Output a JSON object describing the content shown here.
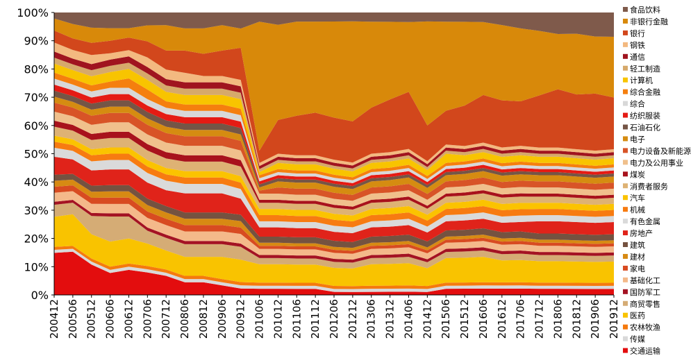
{
  "chart_data": {
    "type": "area",
    "stacked": true,
    "stack_order": "first series at top, last series at bottom",
    "y_tick_labels": [
      "0%",
      "10%",
      "20%",
      "30%",
      "40%",
      "50%",
      "60%",
      "70%",
      "80%",
      "90%",
      "100%"
    ],
    "ylim": [
      0,
      100
    ],
    "x_tick_labels": [
      "200412",
      "200506",
      "200512",
      "200606",
      "200612",
      "200706",
      "200712",
      "200806",
      "200812",
      "200906",
      "200912",
      "201006",
      "201012",
      "201106",
      "201112",
      "201206",
      "201212",
      "201306",
      "201312",
      "201406",
      "201412",
      "201506",
      "201512",
      "201606",
      "201612",
      "201706",
      "201712",
      "201806",
      "201812",
      "201906",
      "201912"
    ],
    "legend_position": "right",
    "grid": false,
    "colors": {
      "食品饮料": "#7f5a4b",
      "非银行金融": "#d8890a",
      "银行": "#d2471c",
      "钢铁": "#f3b980",
      "通信": "#a0141f",
      "轻工制造": "#d6a96b",
      "计算机": "#f8c400",
      "综合金融": "#f57f0e",
      "综合": "#d8d8d8",
      "纺织服装": "#e51b14",
      "石油石化": "#755546",
      "电子": "#d58c11",
      "电力设备及新能源": "#d85427",
      "电力及公用事业": "#f0c08c",
      "煤炭": "#a8121c",
      "消费者服务": "#deb274",
      "汽车": "#fbc300",
      "机械": "#f77b11",
      "有色金属": "#dadada",
      "房地产": "#e0231a",
      "建筑": "#755240",
      "建材": "#d78a13",
      "家电": "#d84b21",
      "基础化工": "#f4b98a",
      "国防军工": "#a41323",
      "商贸零售": "#d5ac75",
      "医药": "#f9c300",
      "农林牧渔": "#f57a0e",
      "传媒": "#d9d9d9",
      "交通运输": "#e30d0e"
    },
    "series": [
      {
        "name": "食品饮料",
        "values": [
          2,
          4,
          5,
          5,
          5,
          4,
          4,
          5,
          5,
          4,
          5,
          3,
          4,
          3,
          3,
          3,
          3,
          3,
          3,
          3,
          3,
          3,
          3,
          3,
          4,
          5,
          6,
          7,
          7,
          8,
          8
        ]
      },
      {
        "name": "非银行金融",
        "values": [
          4,
          5,
          5,
          4,
          3,
          5,
          8,
          7,
          8,
          8,
          6,
          42,
          31,
          31,
          30,
          32,
          34,
          28,
          25,
          22,
          35,
          29,
          27,
          23,
          24,
          23,
          21,
          18,
          20,
          19,
          20
        ]
      },
      {
        "name": "银行",
        "values": [
          4,
          4,
          4,
          4,
          4,
          5,
          6,
          7,
          7,
          8,
          10,
          4,
          11,
          13,
          14,
          14,
          14,
          15,
          17,
          18,
          12,
          11,
          13,
          15,
          15,
          14,
          17,
          19,
          18,
          19,
          17
        ]
      },
      {
        "name": "钢铁",
        "values": [
          3,
          3,
          3,
          2,
          2,
          3,
          3,
          3,
          2,
          2,
          2,
          1,
          1,
          1,
          1,
          1,
          1,
          1,
          1,
          1,
          1,
          1,
          1,
          1,
          1,
          1,
          1,
          1,
          1,
          1,
          1
        ]
      },
      {
        "name": "通信",
        "values": [
          2,
          2,
          2,
          2,
          2,
          2,
          2,
          2,
          2,
          2,
          2,
          1,
          1,
          1,
          1,
          1,
          1,
          1,
          1,
          1,
          1,
          1,
          1,
          1,
          1,
          1,
          1,
          1,
          1,
          1,
          1
        ]
      },
      {
        "name": "轻工制造",
        "values": [
          2,
          2,
          2,
          2,
          2,
          2,
          2,
          2,
          2,
          2,
          2,
          1,
          1,
          1,
          1,
          1,
          1,
          1,
          1,
          1,
          1,
          1,
          1,
          1,
          1,
          1,
          1,
          1,
          1,
          1,
          1
        ]
      },
      {
        "name": "计算机",
        "values": [
          3,
          3,
          3,
          3,
          3,
          3,
          3,
          3,
          3,
          3,
          3,
          1,
          2,
          2,
          2,
          2,
          2,
          2,
          2,
          2,
          2,
          3,
          2,
          2,
          2,
          2,
          2,
          2,
          2,
          2,
          2
        ]
      },
      {
        "name": "综合金融",
        "values": [
          2,
          2,
          2,
          2,
          3,
          3,
          2,
          2,
          2,
          2,
          2,
          1,
          1,
          1,
          1,
          1,
          1,
          1,
          1,
          1,
          1,
          1,
          1,
          1,
          1,
          1,
          1,
          1,
          1,
          1,
          1
        ]
      },
      {
        "name": "综合",
        "values": [
          2,
          2,
          2,
          2,
          2,
          2,
          2,
          2,
          2,
          2,
          2,
          1,
          1,
          1,
          1,
          1,
          1,
          1,
          1,
          1,
          1,
          1,
          1,
          1,
          1,
          1,
          1,
          1,
          1,
          1,
          1
        ]
      },
      {
        "name": "纺织服装",
        "values": [
          2,
          2,
          2,
          2,
          2,
          2,
          2,
          2,
          2,
          2,
          2,
          1,
          1,
          1,
          1,
          1,
          1,
          1,
          1,
          1,
          1,
          1,
          1,
          1,
          1,
          1,
          1,
          1,
          1,
          1,
          1
        ]
      },
      {
        "name": "石油石化",
        "values": [
          2,
          2,
          2,
          2,
          2,
          2,
          2,
          2,
          2,
          2,
          2,
          1,
          1,
          1,
          1,
          1,
          1,
          1,
          1,
          1,
          1,
          1,
          1,
          1,
          1,
          1,
          1,
          1,
          1,
          1,
          1
        ]
      },
      {
        "name": "电子",
        "values": [
          2,
          2,
          2,
          2,
          2,
          2,
          2,
          2,
          2,
          2,
          2,
          1,
          2,
          2,
          2,
          2,
          2,
          2,
          2,
          2,
          2,
          2,
          2,
          2,
          2,
          2,
          2,
          2,
          2,
          2,
          2
        ]
      },
      {
        "name": "电力设备及新能源",
        "values": [
          3,
          3,
          3,
          3,
          3,
          3,
          3,
          3,
          3,
          3,
          3,
          1,
          2,
          2,
          2,
          2,
          2,
          2,
          2,
          2,
          2,
          2,
          2,
          2,
          2,
          2,
          2,
          2,
          2,
          2,
          2
        ]
      },
      {
        "name": "电力及公用事业",
        "values": [
          3,
          3,
          3,
          3,
          3,
          3,
          3,
          3,
          3,
          3,
          3,
          2,
          2,
          2,
          2,
          2,
          2,
          2,
          2,
          2,
          2,
          2,
          2,
          2,
          2,
          2,
          2,
          2,
          2,
          2,
          2
        ]
      },
      {
        "name": "煤炭",
        "values": [
          2,
          2,
          2,
          2,
          2,
          2,
          2,
          2,
          2,
          2,
          2,
          1,
          1,
          1,
          1,
          1,
          1,
          1,
          1,
          1,
          1,
          1,
          1,
          1,
          1,
          1,
          1,
          1,
          1,
          1,
          1
        ]
      },
      {
        "name": "消费者服务",
        "values": [
          3,
          3,
          3,
          3,
          3,
          3,
          3,
          3,
          3,
          3,
          3,
          2,
          2,
          2,
          2,
          2,
          2,
          2,
          2,
          2,
          2,
          2,
          2,
          2,
          2,
          2,
          2,
          2,
          2,
          2,
          2
        ]
      },
      {
        "name": "汽车",
        "values": [
          2,
          2,
          2,
          2,
          2,
          2,
          2,
          2,
          2,
          2,
          2,
          2,
          2,
          2,
          2,
          2,
          2,
          2,
          2,
          2,
          2,
          2,
          2,
          2,
          2,
          2,
          2,
          2,
          2,
          2,
          2
        ]
      },
      {
        "name": "机械",
        "values": [
          2,
          2,
          2,
          2,
          2,
          2,
          2,
          2,
          2,
          2,
          2,
          2,
          2,
          2,
          2,
          2,
          2,
          2,
          2,
          2,
          2,
          2,
          2,
          2,
          2,
          2,
          2,
          2,
          2,
          2,
          2
        ]
      },
      {
        "name": "有色金属",
        "values": [
          3,
          3,
          3,
          3,
          3,
          3,
          3,
          3,
          3,
          3,
          3,
          2,
          2,
          2,
          2,
          2,
          2,
          2,
          2,
          2,
          2,
          2,
          2,
          2,
          2,
          2,
          2,
          2,
          2,
          2,
          2
        ]
      },
      {
        "name": "房地产",
        "values": [
          6,
          5,
          5,
          5,
          5,
          5,
          5,
          6,
          6,
          6,
          5,
          3,
          3,
          3,
          3,
          3,
          3,
          3,
          3,
          3,
          3,
          3,
          3,
          3,
          3,
          3,
          4,
          4,
          4,
          4,
          4
        ]
      },
      {
        "name": "建筑",
        "values": [
          2,
          2,
          2,
          2,
          2,
          2,
          2,
          2,
          2,
          2,
          2,
          2,
          2,
          2,
          2,
          2,
          2,
          2,
          2,
          2,
          2,
          2,
          2,
          2,
          2,
          2,
          2,
          2,
          2,
          2,
          2
        ]
      },
      {
        "name": "建材",
        "values": [
          2,
          2,
          2,
          2,
          2,
          2,
          2,
          2,
          2,
          2,
          2,
          1,
          1,
          1,
          1,
          1,
          1,
          1,
          1,
          1,
          1,
          1,
          1,
          1,
          1,
          1,
          1,
          1,
          1,
          1,
          1
        ]
      },
      {
        "name": "家电",
        "values": [
          2,
          2,
          2,
          2,
          2,
          2,
          2,
          2,
          2,
          2,
          2,
          1,
          1,
          1,
          1,
          1,
          1,
          1,
          1,
          1,
          1,
          1,
          1,
          1,
          1,
          1,
          1,
          1,
          1,
          1,
          1
        ]
      },
      {
        "name": "基础化工",
        "values": [
          3,
          3,
          3,
          3,
          3,
          3,
          3,
          3,
          3,
          3,
          3,
          2,
          2,
          2,
          2,
          2,
          2,
          2,
          2,
          2,
          2,
          2,
          2,
          2,
          2,
          2,
          2,
          2,
          2,
          2,
          2
        ]
      },
      {
        "name": "国防军工",
        "values": [
          1,
          1,
          1,
          1,
          1,
          1,
          1,
          1,
          1,
          1,
          1,
          1,
          1,
          1,
          1,
          1,
          1,
          1,
          1,
          1,
          1,
          1,
          1,
          1,
          1,
          1,
          1,
          1,
          1,
          1,
          1
        ]
      },
      {
        "name": "商贸零售",
        "values": [
          4,
          4,
          6,
          8,
          7,
          4,
          4,
          4,
          4,
          4,
          4,
          2,
          2,
          2,
          2,
          2,
          2,
          2,
          2,
          2,
          2,
          2,
          2,
          2,
          2,
          2,
          2,
          2,
          2,
          2,
          2
        ]
      },
      {
        "name": "医药",
        "values": [
          10,
          11,
          8,
          8,
          8,
          7,
          6,
          6,
          6,
          7,
          7,
          6,
          6,
          6,
          6,
          6,
          6,
          7,
          7,
          7,
          6,
          8,
          8,
          8,
          7,
          7,
          7,
          7,
          7,
          7,
          7
        ]
      },
      {
        "name": "农林牧渔",
        "values": [
          1,
          1,
          1,
          1,
          1,
          1,
          1,
          1,
          1,
          1,
          1,
          1,
          1,
          1,
          1,
          1,
          1,
          1,
          1,
          1,
          1,
          1,
          1,
          1,
          1,
          1,
          1,
          1,
          1,
          1,
          1
        ]
      },
      {
        "name": "传媒",
        "values": [
          1,
          1,
          1,
          1,
          1,
          1,
          1,
          1,
          1,
          1,
          1,
          1,
          1,
          1,
          1,
          1,
          1,
          1,
          1,
          1,
          1,
          1,
          1,
          1,
          1,
          1,
          1,
          1,
          1,
          1,
          1
        ]
      },
      {
        "name": "交通运输",
        "values": [
          14,
          15,
          10,
          7,
          8,
          7,
          6,
          4,
          4,
          3,
          2,
          2,
          2,
          2,
          2,
          1,
          1,
          1,
          1,
          1,
          1,
          2,
          2,
          2,
          2,
          2,
          2,
          2,
          2,
          2,
          2
        ]
      }
    ]
  }
}
